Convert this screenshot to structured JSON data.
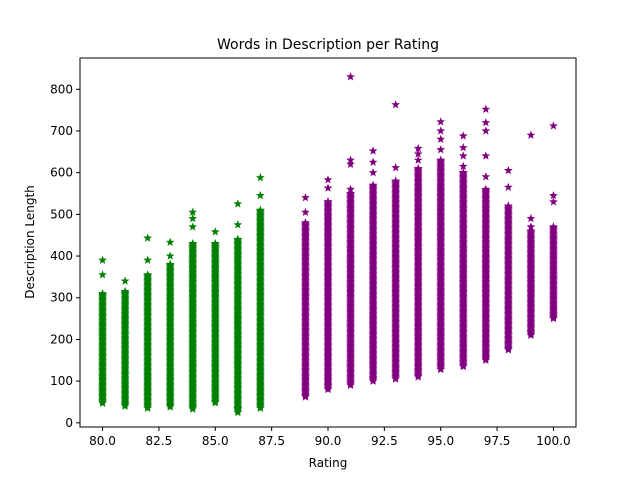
{
  "chart_data": {
    "type": "scatter",
    "title": "Words in Description per Rating",
    "xlabel": "Rating",
    "ylabel": "Description Length",
    "xlim": [
      79.0,
      101.0
    ],
    "ylim": [
      -10,
      875
    ],
    "xticks": [
      80.0,
      82.5,
      85.0,
      87.5,
      90.0,
      92.5,
      95.0,
      97.5,
      100.0
    ],
    "xtick_labels": [
      "80.0",
      "82.5",
      "85.0",
      "87.5",
      "90.0",
      "92.5",
      "95.0",
      "97.5",
      "100.0"
    ],
    "yticks": [
      0,
      100,
      200,
      300,
      400,
      500,
      600,
      700,
      800
    ],
    "ytick_labels": [
      "0",
      "100",
      "200",
      "300",
      "400",
      "500",
      "600",
      "700",
      "800"
    ],
    "grid": false,
    "marker": "star",
    "series": [
      {
        "color": "#008000",
        "columns": [
          {
            "x": 80,
            "min": 47,
            "dense_max": 310,
            "outliers": [
              355,
              390
            ]
          },
          {
            "x": 81,
            "min": 40,
            "dense_max": 315,
            "outliers": [
              340
            ]
          },
          {
            "x": 82,
            "min": 35,
            "dense_max": 355,
            "outliers": [
              390,
              443
            ]
          },
          {
            "x": 83,
            "min": 38,
            "dense_max": 380,
            "outliers": [
              400,
              433
            ]
          },
          {
            "x": 84,
            "min": 33,
            "dense_max": 430,
            "outliers": [
              470,
              490,
              505
            ]
          },
          {
            "x": 85,
            "min": 48,
            "dense_max": 430,
            "outliers": [
              458
            ]
          },
          {
            "x": 86,
            "min": 25,
            "dense_max": 440,
            "outliers": [
              35,
              475,
              525
            ]
          },
          {
            "x": 87,
            "min": 35,
            "dense_max": 510,
            "outliers": [
              545,
              588
            ]
          }
        ]
      },
      {
        "color": "#800080",
        "columns": [
          {
            "x": 89,
            "min": 62,
            "dense_max": 480,
            "outliers": [
              505,
              540
            ]
          },
          {
            "x": 90,
            "min": 80,
            "dense_max": 530,
            "outliers": [
              563,
              583
            ]
          },
          {
            "x": 91,
            "min": 90,
            "dense_max": 550,
            "outliers": [
              560,
              620,
              630,
              830
            ]
          },
          {
            "x": 92,
            "min": 100,
            "dense_max": 570,
            "outliers": [
              600,
              625,
              652
            ]
          },
          {
            "x": 93,
            "min": 105,
            "dense_max": 580,
            "outliers": [
              612,
              763
            ]
          },
          {
            "x": 94,
            "min": 110,
            "dense_max": 610,
            "outliers": [
              630,
              645,
              658
            ]
          },
          {
            "x": 95,
            "min": 128,
            "dense_max": 630,
            "outliers": [
              655,
              680,
              700,
              722
            ]
          },
          {
            "x": 96,
            "min": 135,
            "dense_max": 600,
            "outliers": [
              615,
              640,
              660,
              688
            ]
          },
          {
            "x": 97,
            "min": 150,
            "dense_max": 560,
            "outliers": [
              590,
              640,
              700,
              720,
              752
            ]
          },
          {
            "x": 98,
            "min": 175,
            "dense_max": 520,
            "outliers": [
              565,
              605
            ]
          },
          {
            "x": 99,
            "min": 210,
            "dense_max": 460,
            "outliers": [
              470,
              490,
              690
            ]
          },
          {
            "x": 100,
            "min": 250,
            "dense_max": 470,
            "outliers": [
              530,
              545,
              712
            ]
          }
        ]
      }
    ]
  }
}
